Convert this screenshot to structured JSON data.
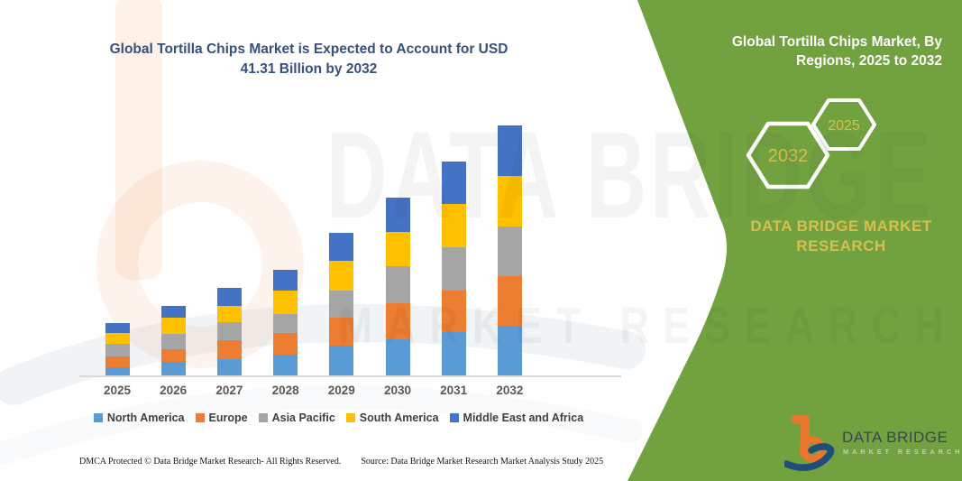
{
  "main_title": {
    "text": "Global Tortilla Chips Market is Expected to Account for USD 41.31 Billion by 2032",
    "lines": [
      "Global Tortilla Chips Market is Expected to Account for USD",
      "41.31 Billion by 2032"
    ]
  },
  "chart_data": {
    "type": "bar",
    "stacked": true,
    "title": "Global Tortilla Chips Market is Expected to Account for USD 41.31 Billion by 2032",
    "xlabel": "",
    "ylabel": "",
    "value_axis": "hidden",
    "grid": false,
    "legend_position": "bottom",
    "unit": "USD Billion",
    "categories": [
      "2025",
      "2026",
      "2027",
      "2028",
      "2029",
      "2030",
      "2031",
      "2032"
    ],
    "series": [
      {
        "name": "North America",
        "color": "#5B9BD5",
        "values": [
          1.4,
          2.3,
          2.7,
          3.4,
          4.9,
          5.9,
          7.1,
          8.28
        ]
      },
      {
        "name": "Europe",
        "color": "#ED7D31",
        "values": [
          1.8,
          2.1,
          3.1,
          3.6,
          4.7,
          6.1,
          7.0,
          8.13
        ]
      },
      {
        "name": "Asia Pacific",
        "color": "#A5A5A5",
        "values": [
          2.0,
          2.5,
          3.0,
          3.2,
          4.4,
          6.1,
          7.1,
          8.24
        ]
      },
      {
        "name": "South America",
        "color": "#FFC000",
        "values": [
          1.8,
          2.6,
          2.7,
          3.9,
          5.0,
          5.6,
          7.1,
          8.38
        ]
      },
      {
        "name": "Middle East and Africa",
        "color": "#4472C4",
        "values": [
          1.6,
          2.0,
          3.0,
          3.4,
          4.5,
          5.7,
          7.1,
          8.28
        ]
      }
    ],
    "totals_estimated": [
      8.6,
      11.5,
      14.5,
      17.5,
      23.5,
      29.4,
      35.4,
      41.31
    ]
  },
  "sidebar": {
    "title_lines": [
      "Global Tortilla Chips Market, By",
      "Regions, 2025 to 2032"
    ],
    "hexagon_large_label": "2032",
    "hexagon_small_label": "2025",
    "brand_lines": [
      "DATA BRIDGE MARKET",
      "RESEARCH"
    ],
    "colors": {
      "green": "#71A23F",
      "gold": "#D8BE4E",
      "hexagon_outline": "#FFFFFF"
    }
  },
  "footer": {
    "dmca": "DMCA Protected © Data Bridge Market Research-  All Rights Reserved.",
    "source": "Source: Data Bridge Market Research  Market Analysis Study 2025"
  },
  "logo": {
    "brand": "DATA BRIDGE",
    "sub": "MARKET RESEARCH",
    "colors": {
      "orange": "#E8772B",
      "blue": "#1F4E79"
    }
  },
  "watermark": {
    "line1": "DATA BRIDGE",
    "line2": "MARKET RESEARCH"
  }
}
